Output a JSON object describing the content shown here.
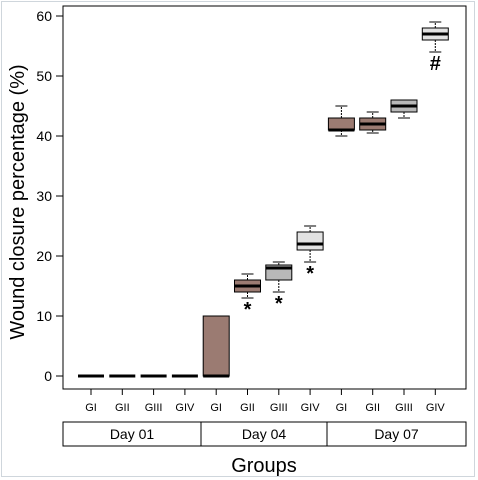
{
  "chart_data": {
    "type": "box",
    "ylabel": "Wound closure percentage (%)",
    "xlabel": "Groups",
    "ylim": [
      0,
      60
    ],
    "yticks": [
      0,
      10,
      20,
      30,
      40,
      50,
      60
    ],
    "ytick_labels": [
      "0",
      "10",
      "20",
      "30",
      "40",
      "50",
      "60"
    ],
    "groups": [
      {
        "label": "Day 01",
        "categories": [
          "GI",
          "GII",
          "GIII",
          "GIV"
        ]
      },
      {
        "label": "Day 04",
        "categories": [
          "GI",
          "GII",
          "GIII",
          "GIV"
        ]
      },
      {
        "label": "Day 07",
        "categories": [
          "GI",
          "GII",
          "GIII",
          "GIV"
        ]
      }
    ],
    "boxes": [
      {
        "group": "Day 01",
        "category": "GI",
        "whisker_low": 0,
        "q1": 0,
        "median": 0,
        "q3": 0,
        "whisker_high": 0,
        "color": "#9b7b72",
        "marker": ""
      },
      {
        "group": "Day 01",
        "category": "GII",
        "whisker_low": 0,
        "q1": 0,
        "median": 0,
        "q3": 0,
        "whisker_high": 0,
        "color": "#9b7b72",
        "marker": ""
      },
      {
        "group": "Day 01",
        "category": "GIII",
        "whisker_low": 0,
        "q1": 0,
        "median": 0,
        "q3": 0,
        "whisker_high": 0,
        "color": "#b8b8b8",
        "marker": ""
      },
      {
        "group": "Day 01",
        "category": "GIV",
        "whisker_low": 0,
        "q1": 0,
        "median": 0,
        "q3": 0,
        "whisker_high": 0,
        "color": "#e2e2e2",
        "marker": ""
      },
      {
        "group": "Day 04",
        "category": "GI",
        "whisker_low": 0,
        "q1": 0,
        "median": 0,
        "q3": 10,
        "whisker_high": 10,
        "color": "#9b7b72",
        "marker": ""
      },
      {
        "group": "Day 04",
        "category": "GII",
        "whisker_low": 13,
        "q1": 14,
        "median": 15,
        "q3": 16,
        "whisker_high": 17,
        "color": "#9b7b72",
        "marker": "*"
      },
      {
        "group": "Day 04",
        "category": "GIII",
        "whisker_low": 14,
        "q1": 16,
        "median": 18,
        "q3": 18.5,
        "whisker_high": 19,
        "color": "#b8b8b8",
        "marker": "*"
      },
      {
        "group": "Day 04",
        "category": "GIV",
        "whisker_low": 19,
        "q1": 21,
        "median": 22,
        "q3": 24,
        "whisker_high": 25,
        "color": "#e2e2e2",
        "marker": "*"
      },
      {
        "group": "Day 07",
        "category": "GI",
        "whisker_low": 40,
        "q1": 41,
        "median": 41,
        "q3": 43,
        "whisker_high": 45,
        "color": "#9b7b72",
        "marker": ""
      },
      {
        "group": "Day 07",
        "category": "GII",
        "whisker_low": 40.5,
        "q1": 41,
        "median": 42,
        "q3": 43,
        "whisker_high": 44,
        "color": "#9b7b72",
        "marker": ""
      },
      {
        "group": "Day 07",
        "category": "GIII",
        "whisker_low": 43,
        "q1": 44,
        "median": 45,
        "q3": 46,
        "whisker_high": 46,
        "color": "#b8b8b8",
        "marker": ""
      },
      {
        "group": "Day 07",
        "category": "GIV",
        "whisker_low": 54,
        "q1": 56,
        "median": 57,
        "q3": 58,
        "whisker_high": 59,
        "color": "#e2e2e2",
        "marker": "#"
      }
    ]
  }
}
